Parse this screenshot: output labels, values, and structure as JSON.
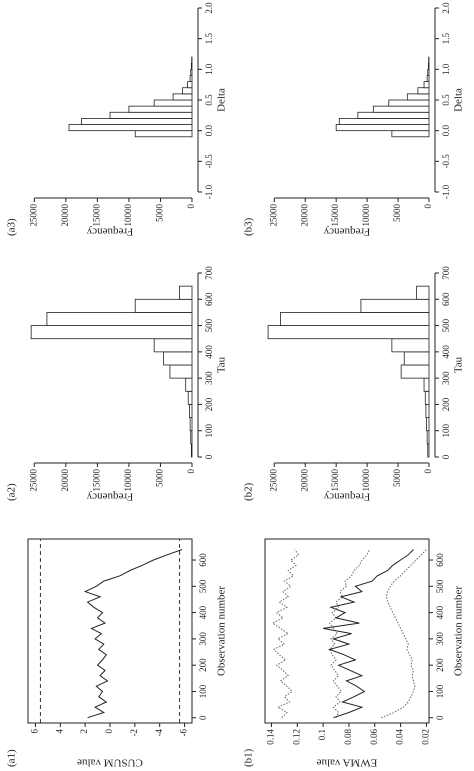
{
  "chart_data": [
    {
      "type": "line",
      "label": "(a1)",
      "xlabel": "Observation number",
      "ylabel": "CUSUM value",
      "x": [
        0,
        20,
        40,
        60,
        80,
        100,
        120,
        140,
        160,
        180,
        200,
        220,
        240,
        260,
        280,
        300,
        320,
        340,
        360,
        380,
        400,
        420,
        440,
        460,
        480,
        500,
        520,
        540,
        560,
        580,
        600,
        620,
        640
      ],
      "series": [
        {
          "color": "#222222",
          "values": [
            1.8,
            0.5,
            1.2,
            0.3,
            0.9,
            0.6,
            1.1,
            0.2,
            0.8,
            0.4,
            1.0,
            0.6,
            0.3,
            0.9,
            0.5,
            1.2,
            0.7,
            1.5,
            0.4,
            1.0,
            0.6,
            1.3,
            1.8,
            0.8,
            2.0,
            1.1,
            0.5,
            -0.8,
            -1.6,
            -2.6,
            -3.5,
            -4.6,
            -5.8
          ]
        }
      ],
      "hlines": [
        5.6,
        -5.6
      ],
      "xlim": [
        -20,
        680
      ],
      "xticks": [
        0,
        100,
        200,
        300,
        400,
        500,
        600
      ],
      "ylim": [
        -6.6,
        6.6
      ],
      "yticks": [
        -6,
        -4,
        -2,
        0,
        2,
        4,
        6
      ]
    },
    {
      "type": "histogram",
      "label": "(a2)",
      "xlabel": "Tau",
      "ylabel": "Frequency",
      "bins": [
        0,
        50,
        100,
        150,
        200,
        250,
        300,
        350,
        400,
        450,
        500,
        550,
        600,
        650
      ],
      "counts": [
        100,
        200,
        300,
        400,
        600,
        1000,
        3500,
        4500,
        6000,
        25500,
        23000,
        9000,
        2000
      ],
      "xlim": [
        0,
        700
      ],
      "xticks": [
        0,
        100,
        200,
        300,
        400,
        500,
        600,
        700
      ],
      "ylim": [
        0,
        26000
      ],
      "yticks": [
        0,
        5000,
        10000,
        15000,
        20000,
        25000
      ]
    },
    {
      "type": "histogram",
      "label": "(a3)",
      "xlabel": "Delta",
      "ylabel": "Frequency",
      "bins": [
        -0.1,
        0,
        0.1,
        0.2,
        0.3,
        0.4,
        0.5,
        0.6,
        0.7,
        0.8,
        0.9,
        1,
        1.1,
        1.2
      ],
      "counts": [
        9000,
        19500,
        17500,
        13000,
        10000,
        6000,
        3000,
        1500,
        700,
        300,
        200,
        100,
        50
      ],
      "xlim": [
        -1,
        2
      ],
      "xticks": [
        {
          "value": -1,
          "label": "-1.0"
        },
        -0.5,
        {
          "value": 0,
          "label": "0.0"
        },
        0.5,
        {
          "value": 1,
          "label": "1.0"
        },
        1.5,
        {
          "value": 2,
          "label": "2.0"
        }
      ],
      "ylim": [
        0,
        26000
      ],
      "yticks": [
        0,
        5000,
        10000,
        15000,
        20000,
        25000
      ]
    },
    {
      "type": "line",
      "label": "(b1)",
      "xlabel": "Observation number",
      "ylabel": "EWMA value",
      "x": [
        0,
        20,
        40,
        60,
        80,
        100,
        120,
        140,
        160,
        180,
        200,
        220,
        240,
        260,
        280,
        300,
        320,
        340,
        360,
        380,
        400,
        420,
        440,
        460,
        480,
        500,
        520,
        540,
        560,
        580,
        600,
        620,
        640
      ],
      "series": [
        {
          "color": "#666666",
          "dash": true,
          "values": [
            0.132,
            0.128,
            0.135,
            0.126,
            0.13,
            0.124,
            0.128,
            0.133,
            0.127,
            0.131,
            0.136,
            0.129,
            0.134,
            0.138,
            0.13,
            0.135,
            0.127,
            0.133,
            0.139,
            0.131,
            0.136,
            0.128,
            0.134,
            0.127,
            0.131,
            0.125,
            0.13,
            0.123,
            0.127,
            0.121,
            0.125,
            0.119,
            0.122
          ]
        },
        {
          "color": "#666666",
          "dash": true,
          "values": [
            0.09,
            0.088,
            0.092,
            0.087,
            0.09,
            0.086,
            0.089,
            0.092,
            0.088,
            0.091,
            0.094,
            0.09,
            0.093,
            0.095,
            0.091,
            0.094,
            0.089,
            0.092,
            0.095,
            0.09,
            0.093,
            0.088,
            0.09,
            0.085,
            0.087,
            0.082,
            0.083,
            0.078,
            0.076,
            0.072,
            0.07,
            0.066,
            0.064
          ]
        },
        {
          "color": "#222222",
          "values": [
            0.092,
            0.08,
            0.07,
            0.085,
            0.076,
            0.068,
            0.074,
            0.082,
            0.07,
            0.079,
            0.088,
            0.075,
            0.084,
            0.095,
            0.08,
            0.092,
            0.078,
            0.1,
            0.072,
            0.09,
            0.083,
            0.094,
            0.076,
            0.086,
            0.07,
            0.075,
            0.062,
            0.058,
            0.05,
            0.046,
            0.04,
            0.034,
            0.03
          ]
        },
        {
          "color": "#666666",
          "dash": true,
          "values": [
            0.055,
            0.045,
            0.038,
            0.034,
            0.032,
            0.03,
            0.029,
            0.03,
            0.031,
            0.03,
            0.032,
            0.031,
            0.033,
            0.035,
            0.034,
            0.036,
            0.038,
            0.04,
            0.042,
            0.044,
            0.046,
            0.048,
            0.05,
            0.051,
            0.05,
            0.048,
            0.045,
            0.04,
            0.036,
            0.032,
            0.028,
            0.024,
            0.02
          ]
        }
      ],
      "xlim": [
        -20,
        680
      ],
      "xticks": [
        0,
        100,
        200,
        300,
        400,
        500,
        600
      ],
      "ylim": [
        0.018,
        0.145
      ],
      "yticks": [
        0.02,
        0.04,
        0.06,
        0.08,
        0.1,
        0.12,
        0.14
      ]
    },
    {
      "type": "histogram",
      "label": "(b2)",
      "xlabel": "Tau",
      "ylabel": "Frequency",
      "bins": [
        0,
        50,
        100,
        150,
        200,
        250,
        300,
        350,
        400,
        450,
        500,
        550,
        600,
        650
      ],
      "counts": [
        200,
        300,
        400,
        500,
        600,
        800,
        4500,
        4000,
        6000,
        26000,
        24000,
        11000,
        2000
      ],
      "xlim": [
        0,
        700
      ],
      "xticks": [
        0,
        100,
        200,
        300,
        400,
        500,
        600,
        700
      ],
      "ylim": [
        0,
        26500
      ],
      "yticks": [
        0,
        5000,
        10000,
        15000,
        20000,
        25000
      ]
    },
    {
      "type": "histogram",
      "label": "(b3)",
      "xlabel": "Delta",
      "ylabel": "Frequency",
      "bins": [
        -0.1,
        0,
        0.1,
        0.2,
        0.3,
        0.4,
        0.5,
        0.6,
        0.7,
        0.8,
        0.9,
        1,
        1.1,
        1.2
      ],
      "counts": [
        6000,
        15000,
        14500,
        11500,
        9000,
        6500,
        3500,
        1800,
        800,
        300,
        200,
        100,
        50
      ],
      "xlim": [
        -1,
        2
      ],
      "xticks": [
        {
          "value": -1,
          "label": "-1.0"
        },
        -0.5,
        {
          "value": 0,
          "label": "0.0"
        },
        0.5,
        {
          "value": 1,
          "label": "1.0"
        },
        1.5,
        {
          "value": 2,
          "label": "2.0"
        }
      ],
      "ylim": [
        0,
        26500
      ],
      "yticks": [
        0,
        5000,
        10000,
        15000,
        20000,
        25000
      ]
    }
  ]
}
